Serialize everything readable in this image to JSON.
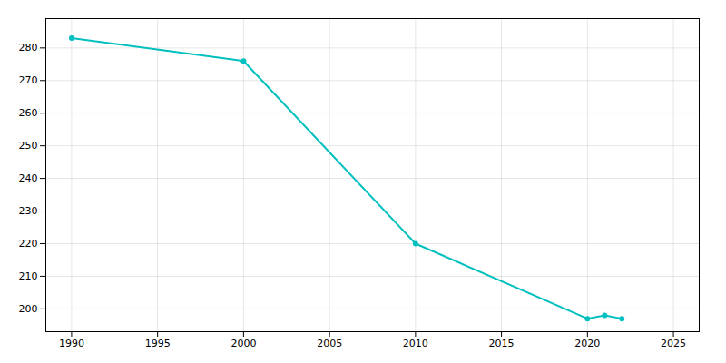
{
  "chart_data": {
    "type": "line",
    "x": [
      1990,
      2000,
      2010,
      2020,
      2021,
      2022
    ],
    "values": [
      283,
      276,
      220,
      197,
      198,
      197
    ],
    "color": "#00BFBF",
    "marker": "circle",
    "xlim": [
      1988.5,
      2026.5
    ],
    "xticks": [
      1990,
      1995,
      2000,
      2005,
      2010,
      2015,
      2020,
      2025
    ],
    "ylim": [
      193,
      289
    ],
    "yticks": [
      200,
      210,
      220,
      230,
      240,
      250,
      260,
      270,
      280
    ],
    "grid": true
  }
}
